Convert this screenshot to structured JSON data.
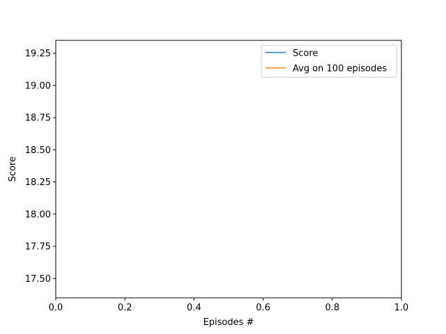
{
  "chart_data": {
    "type": "line",
    "title": "",
    "xlabel": "Episodes #",
    "ylabel": "Score",
    "xlim": [
      0.0,
      1.0
    ],
    "ylim": [
      17.35,
      19.35
    ],
    "x_ticks": [
      0.0,
      0.2,
      0.4,
      0.6,
      0.8,
      1.0
    ],
    "x_tick_labels": [
      "0.0",
      "0.2",
      "0.4",
      "0.6",
      "0.8",
      "1.0"
    ],
    "y_ticks": [
      17.5,
      17.75,
      18.0,
      18.25,
      18.5,
      18.75,
      19.0,
      19.25
    ],
    "y_tick_labels": [
      "17.50",
      "17.75",
      "18.00",
      "18.25",
      "18.50",
      "18.75",
      "19.00",
      "19.25"
    ],
    "grid": false,
    "legend_position": "top-right",
    "series": [
      {
        "name": "Score",
        "color": "#1f77b4",
        "x": [],
        "y": []
      },
      {
        "name": "Avg on 100 episodes",
        "color": "#ff7f0e",
        "x": [],
        "y": []
      }
    ]
  }
}
